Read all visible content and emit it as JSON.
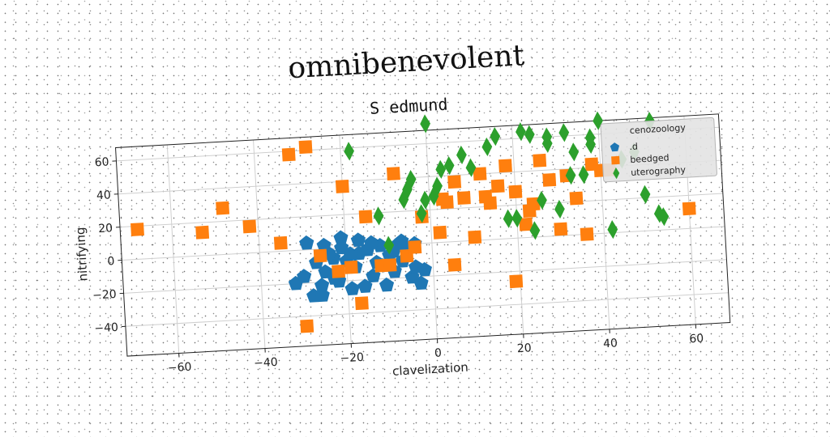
{
  "chart_data": {
    "type": "scatter",
    "title": "omnibenevolent",
    "subtitle": "S edmund",
    "xlabel": "clavelization",
    "ylabel": "nitrifying",
    "xlim": [
      -72,
      68
    ],
    "ylim": [
      -58,
      68
    ],
    "xticks": [
      -60,
      -40,
      -20,
      0,
      20,
      40,
      60
    ],
    "yticks": [
      -40,
      -20,
      0,
      20,
      40,
      60
    ],
    "grid": true,
    "legend": {
      "title": "cenozoology",
      "placement": "top-right"
    },
    "series": [
      {
        "name": ".d",
        "marker": "pentagon",
        "color": "#1f77b4",
        "x": [
          -28,
          -26,
          -25,
          -23,
          -22,
          -20,
          -19,
          -18,
          -17,
          -15,
          -14,
          -13,
          -12,
          -10,
          -9,
          -8,
          -7,
          -6,
          -5,
          -4,
          -3,
          -2,
          -32,
          -30,
          -27,
          -24,
          -21,
          -16,
          -11,
          -26,
          -23,
          -19,
          -14,
          -9,
          -7,
          -4,
          -29,
          -25,
          -21,
          -17
        ],
        "y": [
          -28,
          -22,
          -14,
          -6,
          -20,
          -8,
          -25,
          -12,
          -4,
          -2,
          -18,
          -10,
          0,
          -6,
          -16,
          0,
          -10,
          -2,
          -20,
          -14,
          -24,
          -16,
          -20,
          -16,
          -8,
          -3,
          0,
          -24,
          -24,
          -28,
          -18,
          -4,
          2,
          -4,
          2,
          0,
          4,
          2,
          6,
          4
        ]
      },
      {
        "name": "beedged",
        "marker": "square",
        "color": "#ff7f0e",
        "x": [
          -68,
          -53,
          -48,
          -42,
          -35,
          -32,
          -30,
          -28,
          -26,
          -22,
          -20,
          -17,
          -15,
          -12,
          -10,
          -8,
          -6,
          -4,
          -2,
          2,
          4,
          6,
          8,
          10,
          12,
          14,
          16,
          18,
          20,
          22,
          24,
          26,
          28,
          30,
          32,
          34,
          36,
          38,
          40,
          42,
          60,
          -19,
          3,
          13,
          23,
          5,
          19
        ],
        "y": [
          18,
          14,
          28,
          16,
          5,
          58,
          -46,
          62,
          -4,
          -14,
          37,
          -34,
          18,
          -12,
          -12,
          43,
          -7,
          -2,
          16,
          6,
          24,
          36,
          26,
          2,
          40,
          22,
          32,
          44,
          28,
          8,
          20,
          46,
          34,
          4,
          36,
          22,
          0,
          42,
          38,
          38,
          12,
          -12,
          26,
          26,
          16,
          -14,
          -26
        ],
        "note": ""
      },
      {
        "name": "uterography",
        "marker": "diamond",
        "color": "#2ca02c",
        "x": [
          -18,
          -12,
          -6,
          -5,
          -4,
          -2,
          -1,
          0,
          1,
          2,
          3,
          5,
          8,
          10,
          14,
          16,
          18,
          20,
          22,
          24,
          26,
          28,
          30,
          32,
          34,
          36,
          38,
          40,
          42,
          45,
          48,
          50,
          52,
          53,
          54,
          -10,
          24,
          38,
          28,
          33
        ],
        "y": [
          58,
          18,
          27,
          33,
          39,
          18,
          26,
          72,
          28,
          34,
          44,
          46,
          52,
          44,
          56,
          62,
          12,
          12,
          64,
          62,
          22,
          60,
          16,
          62,
          50,
          36,
          54,
          68,
          2,
          44,
          48,
          22,
          66,
          10,
          8,
          0,
          4,
          58,
          56,
          36
        ]
      }
    ]
  }
}
